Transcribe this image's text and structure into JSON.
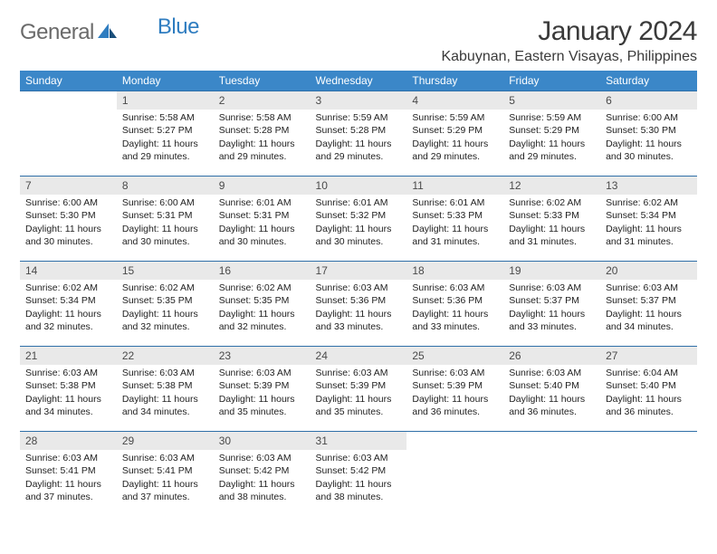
{
  "brand": {
    "name_part1": "General",
    "name_part2": "Blue"
  },
  "colors": {
    "header_bg": "#3b87c8",
    "header_text": "#ffffff",
    "row_border": "#2f6fa8",
    "daynum_bg": "#e9e9e9",
    "logo_gray": "#6a6a6a",
    "logo_blue": "#2f7dc0"
  },
  "title": "January 2024",
  "location": "Kabuynan, Eastern Visayas, Philippines",
  "weekdays": [
    "Sunday",
    "Monday",
    "Tuesday",
    "Wednesday",
    "Thursday",
    "Friday",
    "Saturday"
  ],
  "weeks": [
    [
      {
        "n": "",
        "sr": "",
        "ss": "",
        "dl": ""
      },
      {
        "n": "1",
        "sr": "5:58 AM",
        "ss": "5:27 PM",
        "dl": "11 hours and 29 minutes."
      },
      {
        "n": "2",
        "sr": "5:58 AM",
        "ss": "5:28 PM",
        "dl": "11 hours and 29 minutes."
      },
      {
        "n": "3",
        "sr": "5:59 AM",
        "ss": "5:28 PM",
        "dl": "11 hours and 29 minutes."
      },
      {
        "n": "4",
        "sr": "5:59 AM",
        "ss": "5:29 PM",
        "dl": "11 hours and 29 minutes."
      },
      {
        "n": "5",
        "sr": "5:59 AM",
        "ss": "5:29 PM",
        "dl": "11 hours and 29 minutes."
      },
      {
        "n": "6",
        "sr": "6:00 AM",
        "ss": "5:30 PM",
        "dl": "11 hours and 30 minutes."
      }
    ],
    [
      {
        "n": "7",
        "sr": "6:00 AM",
        "ss": "5:30 PM",
        "dl": "11 hours and 30 minutes."
      },
      {
        "n": "8",
        "sr": "6:00 AM",
        "ss": "5:31 PM",
        "dl": "11 hours and 30 minutes."
      },
      {
        "n": "9",
        "sr": "6:01 AM",
        "ss": "5:31 PM",
        "dl": "11 hours and 30 minutes."
      },
      {
        "n": "10",
        "sr": "6:01 AM",
        "ss": "5:32 PM",
        "dl": "11 hours and 30 minutes."
      },
      {
        "n": "11",
        "sr": "6:01 AM",
        "ss": "5:33 PM",
        "dl": "11 hours and 31 minutes."
      },
      {
        "n": "12",
        "sr": "6:02 AM",
        "ss": "5:33 PM",
        "dl": "11 hours and 31 minutes."
      },
      {
        "n": "13",
        "sr": "6:02 AM",
        "ss": "5:34 PM",
        "dl": "11 hours and 31 minutes."
      }
    ],
    [
      {
        "n": "14",
        "sr": "6:02 AM",
        "ss": "5:34 PM",
        "dl": "11 hours and 32 minutes."
      },
      {
        "n": "15",
        "sr": "6:02 AM",
        "ss": "5:35 PM",
        "dl": "11 hours and 32 minutes."
      },
      {
        "n": "16",
        "sr": "6:02 AM",
        "ss": "5:35 PM",
        "dl": "11 hours and 32 minutes."
      },
      {
        "n": "17",
        "sr": "6:03 AM",
        "ss": "5:36 PM",
        "dl": "11 hours and 33 minutes."
      },
      {
        "n": "18",
        "sr": "6:03 AM",
        "ss": "5:36 PM",
        "dl": "11 hours and 33 minutes."
      },
      {
        "n": "19",
        "sr": "6:03 AM",
        "ss": "5:37 PM",
        "dl": "11 hours and 33 minutes."
      },
      {
        "n": "20",
        "sr": "6:03 AM",
        "ss": "5:37 PM",
        "dl": "11 hours and 34 minutes."
      }
    ],
    [
      {
        "n": "21",
        "sr": "6:03 AM",
        "ss": "5:38 PM",
        "dl": "11 hours and 34 minutes."
      },
      {
        "n": "22",
        "sr": "6:03 AM",
        "ss": "5:38 PM",
        "dl": "11 hours and 34 minutes."
      },
      {
        "n": "23",
        "sr": "6:03 AM",
        "ss": "5:39 PM",
        "dl": "11 hours and 35 minutes."
      },
      {
        "n": "24",
        "sr": "6:03 AM",
        "ss": "5:39 PM",
        "dl": "11 hours and 35 minutes."
      },
      {
        "n": "25",
        "sr": "6:03 AM",
        "ss": "5:39 PM",
        "dl": "11 hours and 36 minutes."
      },
      {
        "n": "26",
        "sr": "6:03 AM",
        "ss": "5:40 PM",
        "dl": "11 hours and 36 minutes."
      },
      {
        "n": "27",
        "sr": "6:04 AM",
        "ss": "5:40 PM",
        "dl": "11 hours and 36 minutes."
      }
    ],
    [
      {
        "n": "28",
        "sr": "6:03 AM",
        "ss": "5:41 PM",
        "dl": "11 hours and 37 minutes."
      },
      {
        "n": "29",
        "sr": "6:03 AM",
        "ss": "5:41 PM",
        "dl": "11 hours and 37 minutes."
      },
      {
        "n": "30",
        "sr": "6:03 AM",
        "ss": "5:42 PM",
        "dl": "11 hours and 38 minutes."
      },
      {
        "n": "31",
        "sr": "6:03 AM",
        "ss": "5:42 PM",
        "dl": "11 hours and 38 minutes."
      },
      {
        "n": "",
        "sr": "",
        "ss": "",
        "dl": ""
      },
      {
        "n": "",
        "sr": "",
        "ss": "",
        "dl": ""
      },
      {
        "n": "",
        "sr": "",
        "ss": "",
        "dl": ""
      }
    ]
  ],
  "labels": {
    "sunrise": "Sunrise: ",
    "sunset": "Sunset: ",
    "daylight": "Daylight: "
  }
}
